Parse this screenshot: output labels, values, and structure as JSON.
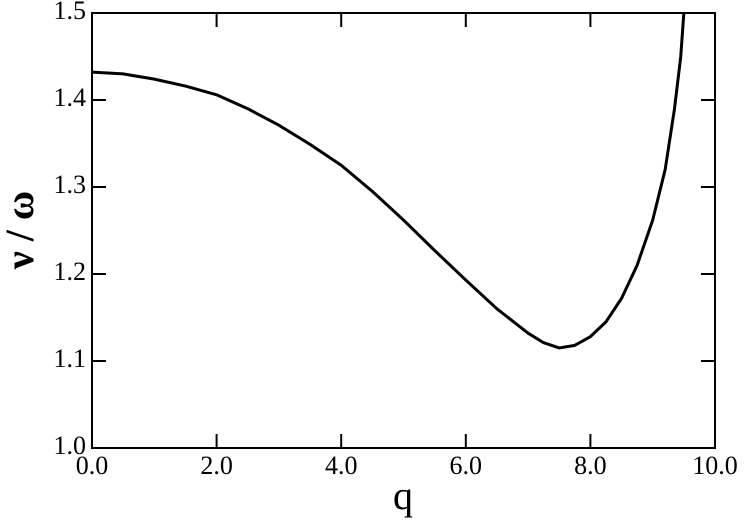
{
  "chart_data": {
    "type": "line",
    "xlabel": "q",
    "ylabel": "ν / ω",
    "series": [
      {
        "color": "#000000",
        "x": [
          0,
          0.5,
          1,
          1.5,
          2,
          2.5,
          3,
          3.5,
          4,
          4.5,
          5,
          5.5,
          6,
          6.5,
          7,
          7.25,
          7.5,
          7.75,
          8,
          8.25,
          8.5,
          8.75,
          9,
          9.2,
          9.35,
          9.45,
          9.5
        ],
        "values": [
          1.432,
          1.43,
          1.424,
          1.416,
          1.406,
          1.39,
          1.371,
          1.349,
          1.325,
          1.295,
          1.262,
          1.227,
          1.193,
          1.16,
          1.132,
          1.121,
          1.115,
          1.118,
          1.128,
          1.145,
          1.172,
          1.21,
          1.262,
          1.32,
          1.39,
          1.45,
          1.5
        ]
      }
    ],
    "xlim": [
      0,
      10
    ],
    "xticks": [
      {
        "value": 0,
        "label": "0.0"
      },
      {
        "value": 2,
        "label": "2.0"
      },
      {
        "value": 4,
        "label": "4.0"
      },
      {
        "value": 6,
        "label": "6.0"
      },
      {
        "value": 8,
        "label": "8.0"
      },
      {
        "value": 10,
        "label": "10.0"
      }
    ],
    "ylim": [
      1.0,
      1.5
    ],
    "yticks": [
      {
        "value": 1.0,
        "label": "1.0"
      },
      1.1,
      1.2,
      1.3,
      1.4,
      1.5
    ]
  }
}
